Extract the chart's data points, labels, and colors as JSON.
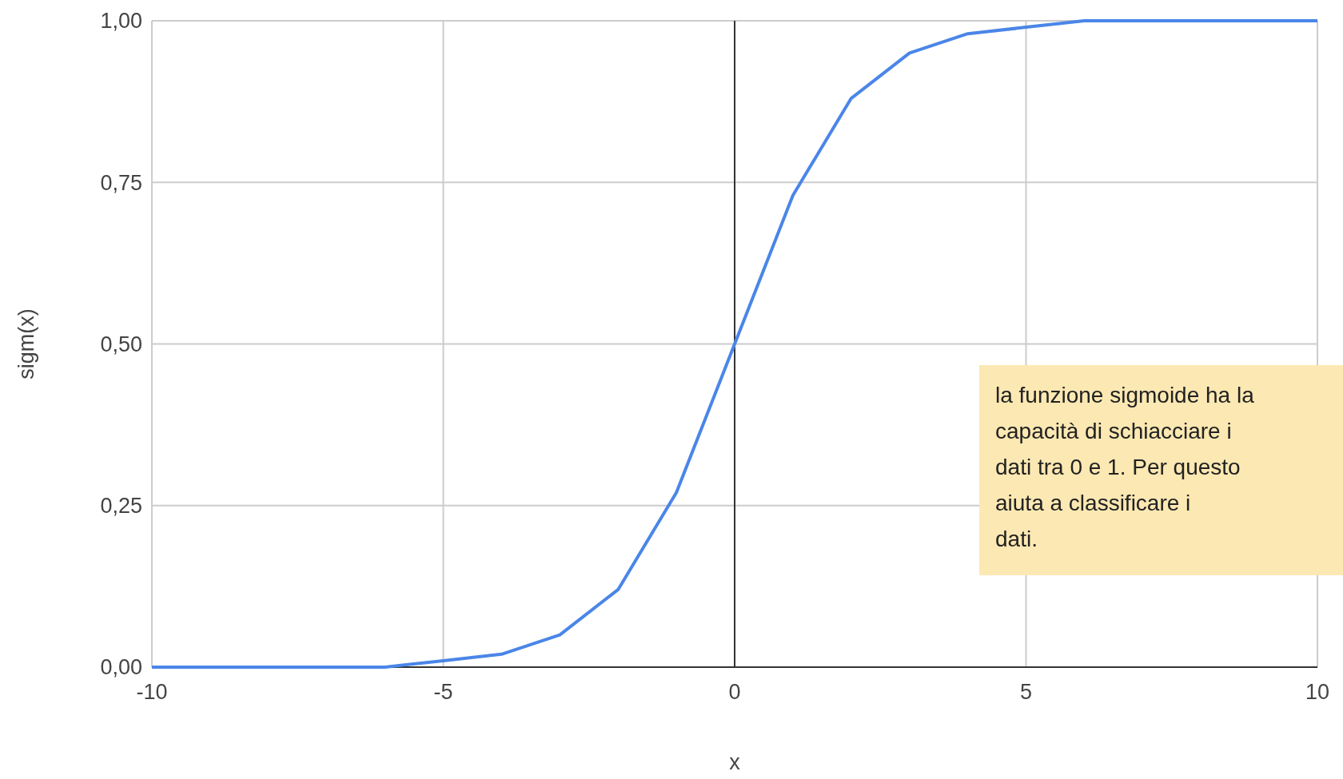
{
  "chart_data": {
    "type": "line",
    "xlabel": "x",
    "ylabel": "sigm(x)",
    "x": [
      -10,
      -9,
      -8,
      -7,
      -6,
      -5,
      -4,
      -3,
      -2,
      -1,
      0,
      1,
      2,
      3,
      4,
      5,
      6,
      7,
      8,
      9,
      10
    ],
    "series": [
      {
        "color": "#4a86e8",
        "values": [
          0,
          0,
          0,
          0,
          0,
          0.01,
          0.02,
          0.05,
          0.12,
          0.27,
          0.5,
          0.73,
          0.88,
          0.95,
          0.98,
          0.99,
          1,
          1,
          1,
          1,
          1
        ]
      }
    ],
    "xlim": [
      -10,
      10
    ],
    "xticks": [
      -10,
      -5,
      0,
      5,
      10
    ],
    "ylim": [
      0,
      1
    ],
    "yticks": [
      {
        "value": 0,
        "label": "0,00"
      },
      {
        "value": 0.25,
        "label": "0,25"
      },
      {
        "value": 0.5,
        "label": "0,50"
      },
      {
        "value": 0.75,
        "label": "0,75"
      },
      {
        "value": 1,
        "label": "1,00"
      }
    ],
    "grid": true,
    "marker": "none",
    "line_style": "solid",
    "ref_lines": [
      {
        "axis": "x",
        "value": 0,
        "color": "#333333"
      }
    ],
    "annotations": [
      "la funzione sigmoide ha la capacità di schiacciare i dati tra 0 e 1. Per questo aiuta a classificare i dati."
    ]
  }
}
